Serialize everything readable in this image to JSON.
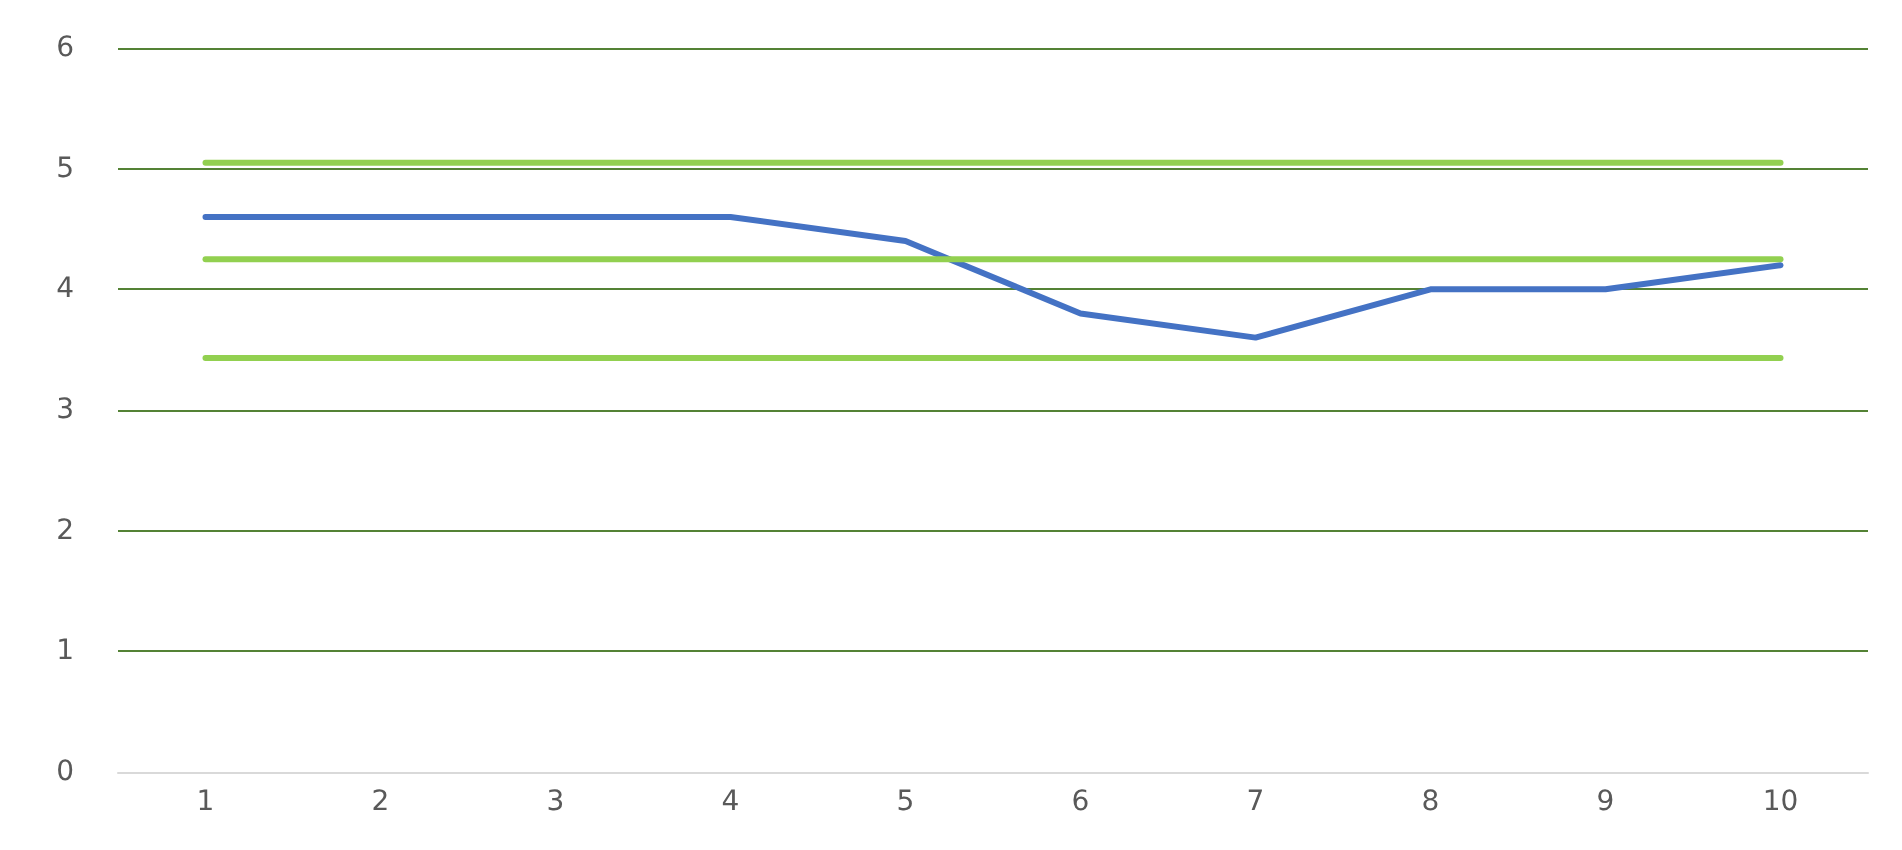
{
  "chart_data": {
    "type": "line",
    "categories": [
      "1",
      "2",
      "3",
      "4",
      "5",
      "6",
      "7",
      "8",
      "9",
      "10"
    ],
    "series": [
      {
        "color": "#4472c4",
        "values": [
          4.6,
          4.6,
          4.6,
          4.6,
          4.4,
          3.8,
          3.6,
          4.0,
          4.0,
          4.2
        ]
      },
      {
        "color": "#92d050",
        "values": [
          5.05,
          5.05,
          5.05,
          5.05,
          5.05,
          5.05,
          5.05,
          5.05,
          5.05,
          5.05
        ]
      },
      {
        "color": "#92d050",
        "values": [
          4.25,
          4.25,
          4.25,
          4.25,
          4.25,
          4.25,
          4.25,
          4.25,
          4.25,
          4.25
        ]
      },
      {
        "color": "#92d050",
        "values": [
          3.43,
          3.43,
          3.43,
          3.43,
          3.43,
          3.43,
          3.43,
          3.43,
          3.43,
          3.43
        ]
      }
    ],
    "ylim": [
      0,
      6
    ],
    "yticks": [
      0,
      1,
      2,
      3,
      4,
      5,
      6
    ],
    "grid": "y",
    "marker": "none",
    "line_style": "solid"
  }
}
